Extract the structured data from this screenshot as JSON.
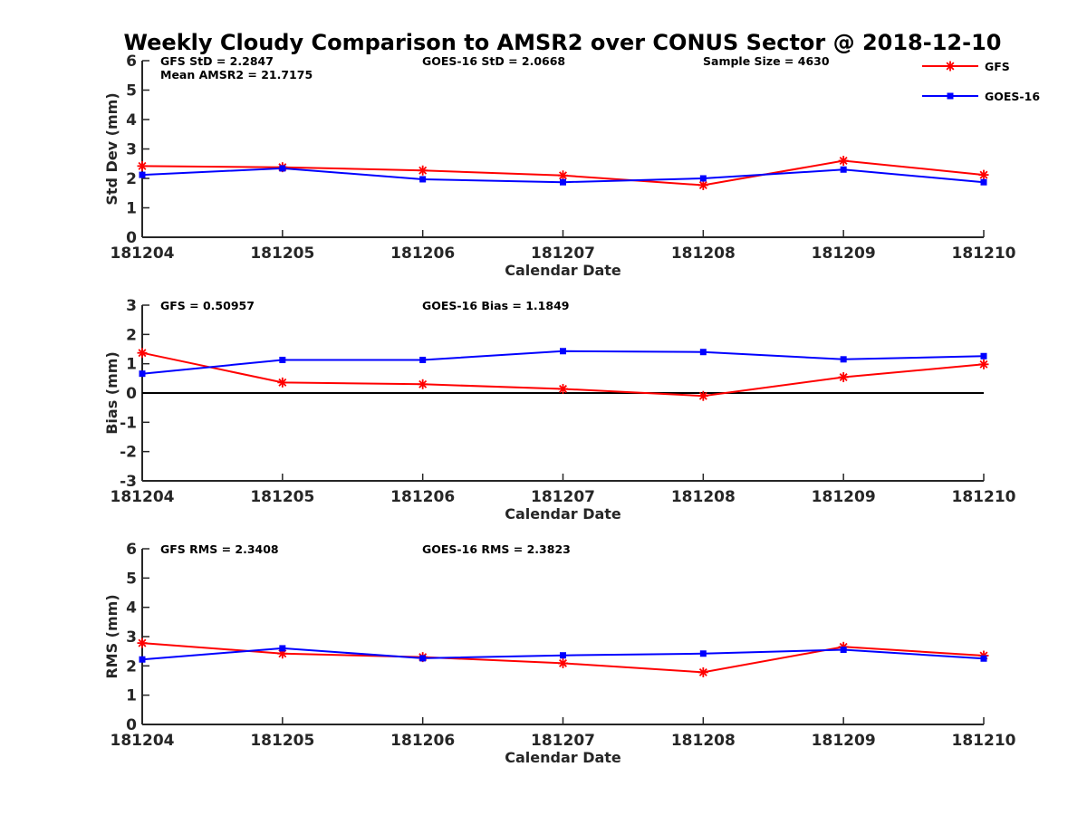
{
  "title": "Weekly Cloudy Comparison to AMSR2 over CONUS Sector @ 2018-12-10",
  "legend": [
    {
      "label": "GFS",
      "color": "#ff0000",
      "marker": "asterisk"
    },
    {
      "label": "GOES-16",
      "color": "#0000ff",
      "marker": "square"
    }
  ],
  "chart_data": [
    {
      "type": "line",
      "x": [
        "181204",
        "181205",
        "181206",
        "181207",
        "181208",
        "181209",
        "181210"
      ],
      "xlabel": "Calendar Date",
      "ylabel": "Std Dev (mm)",
      "ylim": [
        0,
        6
      ],
      "yticks": [
        "0",
        "1",
        "2",
        "3",
        "4",
        "5",
        "6"
      ],
      "grid": false,
      "legend_position": "top-right",
      "series": [
        {
          "name": "GFS",
          "color": "#ff0000",
          "marker": "asterisk",
          "values": [
            2.42,
            2.38,
            2.27,
            2.1,
            1.77,
            2.6,
            2.12
          ]
        },
        {
          "name": "GOES-16",
          "color": "#0000ff",
          "marker": "square",
          "values": [
            2.12,
            2.34,
            1.97,
            1.87,
            2.0,
            2.3,
            1.87
          ]
        }
      ],
      "annotations": {
        "left": "GFS StD = 2.2847",
        "left2": "Mean AMSR2 = 21.7175",
        "middle": "GOES-16 StD = 2.0668",
        "right": "Sample Size = 4630"
      }
    },
    {
      "type": "line",
      "x": [
        "181204",
        "181205",
        "181206",
        "181207",
        "181208",
        "181209",
        "181210"
      ],
      "xlabel": "Calendar Date",
      "ylabel": "Bias (mm)",
      "ylim": [
        -3,
        3
      ],
      "yticks": [
        "-3",
        "-2",
        "-1",
        "0",
        "1",
        "2",
        "3"
      ],
      "grid": false,
      "zero_line": true,
      "series": [
        {
          "name": "GFS",
          "color": "#ff0000",
          "marker": "asterisk",
          "values": [
            1.37,
            0.36,
            0.3,
            0.14,
            -0.1,
            0.54,
            0.98
          ]
        },
        {
          "name": "GOES-16",
          "color": "#0000ff",
          "marker": "square",
          "values": [
            0.66,
            1.13,
            1.13,
            1.43,
            1.4,
            1.15,
            1.26
          ]
        }
      ],
      "annotations": {
        "left": "GFS = 0.50957",
        "middle": "GOES-16 Bias  = 1.1849"
      }
    },
    {
      "type": "line",
      "x": [
        "181204",
        "181205",
        "181206",
        "181207",
        "181208",
        "181209",
        "181210"
      ],
      "xlabel": "Calendar Date",
      "ylabel": "RMS (mm)",
      "ylim": [
        0,
        6
      ],
      "yticks": [
        "0",
        "1",
        "2",
        "3",
        "4",
        "5",
        "6"
      ],
      "grid": false,
      "series": [
        {
          "name": "GFS",
          "color": "#ff0000",
          "marker": "asterisk",
          "values": [
            2.78,
            2.42,
            2.3,
            2.09,
            1.78,
            2.65,
            2.35
          ]
        },
        {
          "name": "GOES-16",
          "color": "#0000ff",
          "marker": "square",
          "values": [
            2.22,
            2.6,
            2.26,
            2.36,
            2.42,
            2.55,
            2.25
          ]
        }
      ],
      "annotations": {
        "left": "GFS RMS = 2.3408",
        "middle": "GOES-16 RMS = 2.3823"
      }
    }
  ]
}
